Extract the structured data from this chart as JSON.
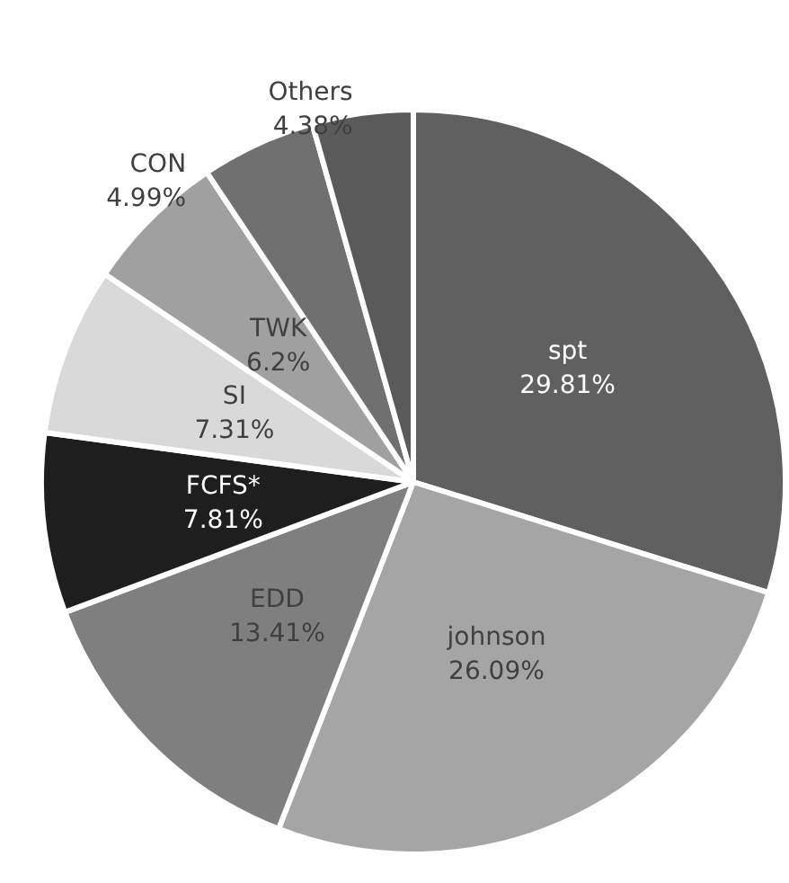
{
  "chart_data": {
    "type": "pie",
    "categories": [
      "spt",
      "johnson",
      "EDD",
      "FCFS*",
      "SI",
      "TWK",
      "CON",
      "Others"
    ],
    "values": [
      29.81,
      26.09,
      13.41,
      7.81,
      7.31,
      6.2,
      4.99,
      4.38
    ],
    "colors": [
      "#606060",
      "#a5a5a5",
      "#7f7f7f",
      "#1e1e1e",
      "#d9d9d9",
      "#a0a0a0",
      "#707070",
      "#5a5a5a"
    ],
    "value_labels": [
      "29.81%",
      "26.09%",
      "13.41%",
      "7.81%",
      "7.31%",
      "6.2%",
      "4.99%",
      "4.38%"
    ],
    "legend": false
  }
}
